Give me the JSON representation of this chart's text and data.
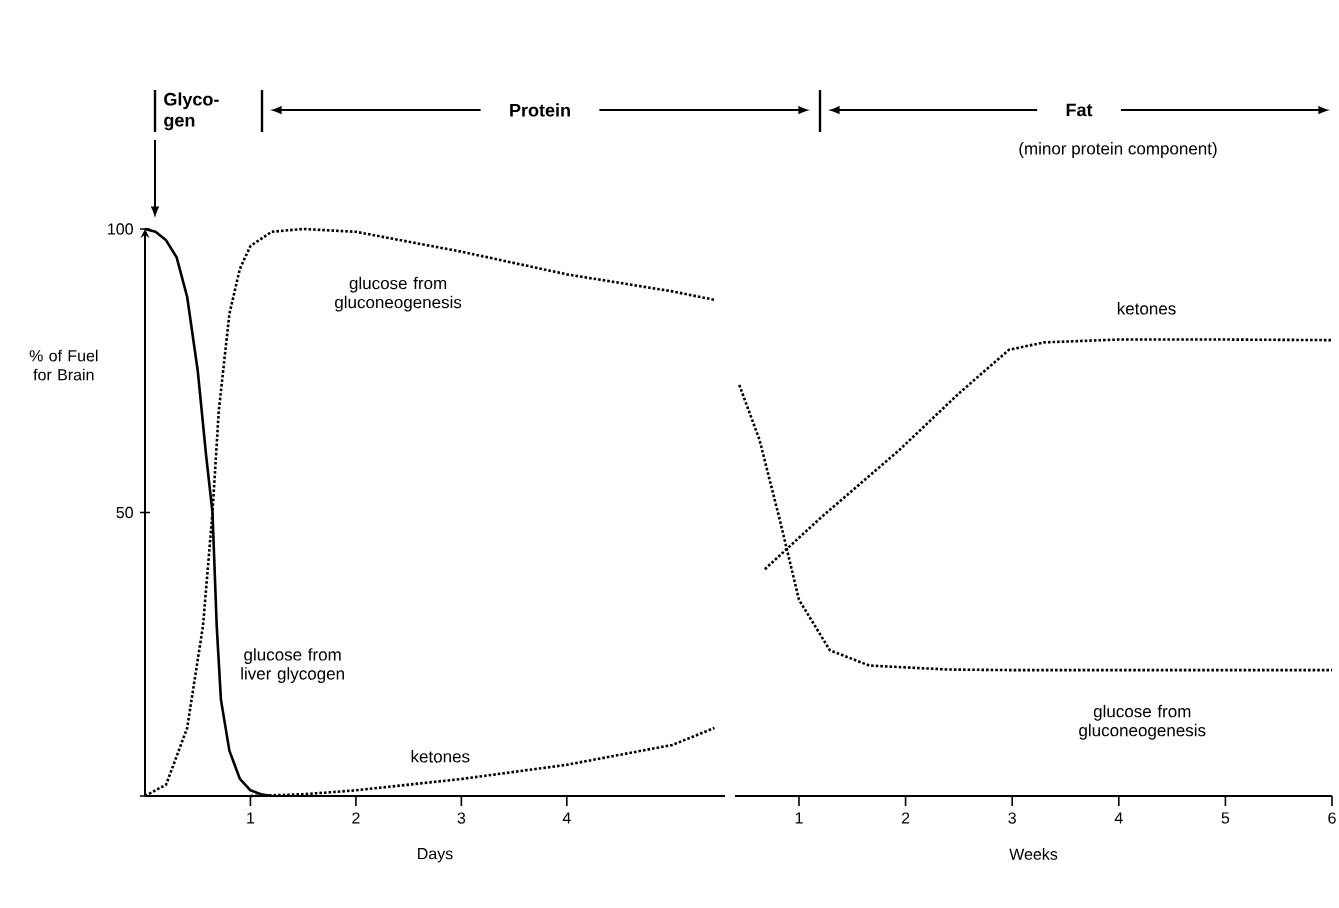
{
  "chart_data": [
    {
      "type": "line",
      "xlabel": "Days",
      "ylabel": "% of Fuel for Brain",
      "xlim": [
        0,
        5.5
      ],
      "ylim": [
        0,
        100
      ],
      "xticks": [
        1,
        2,
        3,
        4
      ],
      "yticks": [
        {
          "value": 0,
          "label": null
        },
        50,
        100
      ],
      "grid": false,
      "marker": "none",
      "series": [
        {
          "color": "#000000",
          "line_style": "solid",
          "x": [
            0,
            0.1,
            0.2,
            0.3,
            0.4,
            0.5,
            0.58,
            0.64,
            0.68,
            0.72,
            0.8,
            0.9,
            1.0,
            1.1,
            1.2
          ],
          "values": [
            100,
            99.5,
            98,
            95,
            88,
            75,
            60,
            50,
            30,
            17,
            8,
            3,
            1,
            0.3,
            0
          ]
        },
        {
          "color": "#000000",
          "line_style": "dotted",
          "x": [
            0,
            0.2,
            0.4,
            0.55,
            0.64,
            0.7,
            0.8,
            0.9,
            1.0,
            1.2,
            1.5,
            2,
            3,
            4,
            5,
            5.4
          ],
          "values": [
            0,
            2,
            12,
            30,
            50,
            68,
            85,
            93,
            97,
            99.5,
            100,
            99.5,
            96,
            92,
            89,
            87.5
          ]
        },
        {
          "color": "#000000",
          "line_style": "dotted",
          "x": [
            1,
            1.5,
            2,
            3,
            4,
            5,
            5.4
          ],
          "values": [
            0,
            0.3,
            1,
            3,
            5.5,
            9,
            12
          ]
        }
      ],
      "annotations": [
        "Glyco-gen",
        "Protein",
        "glucose from gluconeogenesis",
        "glucose from liver glycogen",
        "ketones"
      ]
    },
    {
      "type": "line",
      "xlabel": "Weeks",
      "xlim": [
        0.4,
        6
      ],
      "ylim": [
        0,
        100
      ],
      "xticks": [
        1,
        2,
        3,
        4,
        5,
        6
      ],
      "tick_labels": "x",
      "grid": false,
      "marker": "none",
      "series": [
        {
          "color": "#000000",
          "line_style": "dotted",
          "x": [
            0.68,
            1.2,
            1.94,
            2.5,
            2.97,
            3.3,
            4,
            5,
            6
          ],
          "values": [
            40,
            49,
            61,
            71,
            78.7,
            80,
            80.5,
            80.5,
            80.4
          ]
        },
        {
          "color": "#000000",
          "line_style": "dotted",
          "x": [
            0.44,
            0.63,
            0.82,
            1.0,
            1.29,
            1.66,
            2.4,
            3,
            4,
            5,
            6
          ],
          "values": [
            72.5,
            62.8,
            48.7,
            34.6,
            25.7,
            23,
            22.3,
            22.2,
            22.2,
            22.2,
            22.2
          ]
        }
      ],
      "annotations": [
        "Fat",
        "(minor protein component)",
        "ketones",
        "glucose from gluconeogenesis"
      ]
    }
  ]
}
